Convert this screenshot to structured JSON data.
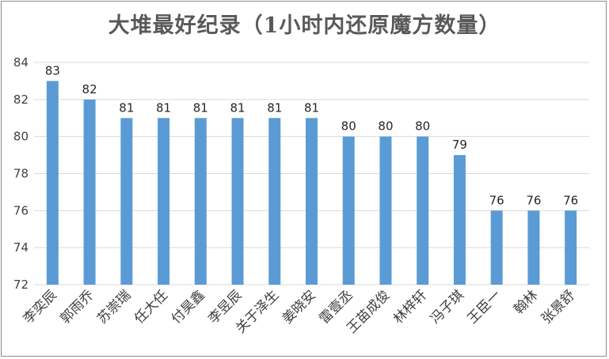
{
  "chart_data": {
    "type": "bar",
    "title": "大堆最好纪录（1小时内还原魔方数量）",
    "categories": [
      "李奕辰",
      "郭雨乔",
      "苏崇瑞",
      "任大任",
      "付昊鑫",
      "李昱辰",
      "关于泽生",
      "姜晓安",
      "雷壹丞",
      "王苗成俊",
      "林梓轩",
      "冯子琪",
      "王臣一",
      "翰林",
      "张景舒"
    ],
    "values": [
      83,
      82,
      81,
      81,
      81,
      81,
      81,
      81,
      80,
      80,
      80,
      79,
      76,
      76,
      76
    ],
    "ylim": [
      72,
      84
    ],
    "yticks": [
      "72",
      "74",
      "76",
      "78",
      "80",
      "82",
      "84"
    ],
    "grid": true,
    "legend": "none",
    "colors": {
      "bar": "#5b9bd5",
      "grid": "#d9d9d9",
      "text": "#404040"
    }
  }
}
